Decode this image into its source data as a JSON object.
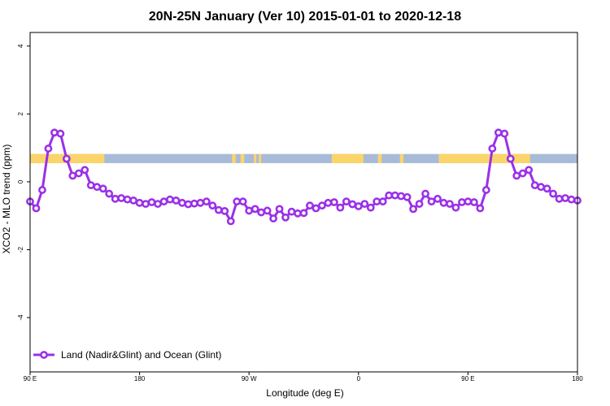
{
  "chart_data": {
    "type": "line",
    "title": "20N-25N January (Ver 10)   2015-01-01 to 2020-12-18",
    "xlabel": "Longitude (deg E)",
    "ylabel": "XCO2 - MLO trend (ppm)",
    "xlim": [
      90,
      540
    ],
    "ylim": [
      -5.6,
      4.4
    ],
    "x_ticks": [
      {
        "value": 90,
        "label": "90 E"
      },
      {
        "value": 180,
        "label": "180"
      },
      {
        "value": 270,
        "label": "90 W"
      },
      {
        "value": 360,
        "label": "0"
      },
      {
        "value": 450,
        "label": "90 E"
      },
      {
        "value": 540,
        "label": "180"
      }
    ],
    "y_ticks": [
      {
        "value": 4,
        "label": "4"
      },
      {
        "value": 2,
        "label": "2"
      },
      {
        "value": 0,
        "label": "0"
      },
      {
        "value": -2,
        "label": "-2"
      },
      {
        "value": -4,
        "label": "-4"
      }
    ],
    "land_ocean_band": {
      "y_range": [
        0.55,
        0.82
      ],
      "ocean_color": "#a7bbd8",
      "land_color": "#fbd56a",
      "land_segments": [
        [
          90,
          151
        ],
        [
          256,
          259
        ],
        [
          263,
          266
        ],
        [
          274,
          276
        ],
        [
          278,
          280
        ],
        [
          338,
          364
        ],
        [
          376,
          379
        ],
        [
          394,
          397
        ],
        [
          426,
          450
        ],
        [
          450,
          501
        ]
      ]
    },
    "legend": {
      "position": "bottom-left"
    },
    "series": [
      {
        "name": "Land (Nadir&Glint) and Ocean (Glint)",
        "color": "#9b30e8",
        "x": [
          90,
          95,
          100,
          105,
          110,
          115,
          120,
          125,
          130,
          135,
          140,
          145,
          150,
          155,
          160,
          165,
          170,
          175,
          180,
          185,
          190,
          195,
          200,
          205,
          210,
          215,
          220,
          225,
          230,
          235,
          240,
          245,
          250,
          255,
          260,
          265,
          270,
          275,
          280,
          285,
          290,
          295,
          300,
          305,
          310,
          315,
          320,
          325,
          330,
          335,
          340,
          345,
          350,
          355,
          360,
          365,
          370,
          375,
          380,
          385,
          390,
          395,
          400,
          405,
          410,
          415,
          420,
          425,
          430,
          435,
          440,
          445,
          450,
          455,
          460,
          465,
          470,
          475,
          480,
          485,
          490,
          495,
          500,
          505,
          510,
          515,
          520,
          525,
          530,
          535,
          540
        ],
        "y": [
          -0.58,
          -0.78,
          -0.24,
          0.98,
          1.45,
          1.42,
          0.68,
          0.18,
          0.25,
          0.35,
          -0.1,
          -0.15,
          -0.2,
          -0.35,
          -0.5,
          -0.48,
          -0.52,
          -0.55,
          -0.62,
          -0.65,
          -0.6,
          -0.65,
          -0.58,
          -0.52,
          -0.55,
          -0.62,
          -0.66,
          -0.64,
          -0.62,
          -0.58,
          -0.7,
          -0.83,
          -0.86,
          -1.16,
          -0.58,
          -0.58,
          -0.85,
          -0.8,
          -0.9,
          -0.85,
          -1.08,
          -0.8,
          -1.05,
          -0.88,
          -0.93,
          -0.92,
          -0.7,
          -0.78,
          -0.7,
          -0.62,
          -0.6,
          -0.76,
          -0.58,
          -0.66,
          -0.72,
          -0.65,
          -0.76,
          -0.58,
          -0.58,
          -0.4,
          -0.4,
          -0.42,
          -0.45,
          -0.8,
          -0.65,
          -0.35,
          -0.58,
          -0.5,
          -0.62,
          -0.65,
          -0.76,
          -0.6,
          -0.58,
          -0.6,
          -0.78,
          -0.24,
          0.98,
          1.45,
          1.42,
          0.68,
          0.18,
          0.25,
          0.35,
          -0.1,
          -0.15,
          -0.2,
          -0.35,
          -0.5,
          -0.48,
          -0.52,
          -0.55
        ]
      }
    ]
  }
}
